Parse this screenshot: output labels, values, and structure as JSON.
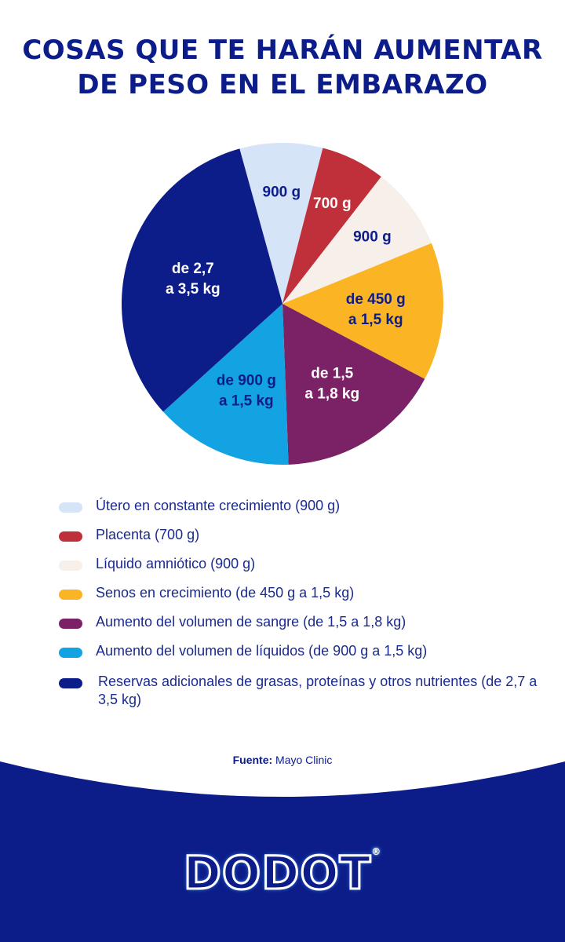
{
  "title": {
    "line1": "COSAS QUE TE HARÁN AUMENTAR",
    "line2": "DE PESO EN EL EMBARAZO"
  },
  "chart_data": {
    "type": "pie",
    "title": "COSAS QUE TE HARÁN AUMENTAR DE PESO EN EL EMBARAZO",
    "slices": [
      {
        "legend": "Útero en constante crecimiento (900 g)",
        "label_lines": [
          "900 g"
        ],
        "value": 900,
        "color": "#d6e4f7",
        "text_color": "#0c1d8a"
      },
      {
        "legend": "Placenta (700 g)",
        "label_lines": [
          "700 g"
        ],
        "value": 700,
        "color": "#c0303a",
        "text_color": "#ffffff"
      },
      {
        "legend": "Líquido amniótico (900 g)",
        "label_lines": [
          "900 g"
        ],
        "value": 900,
        "color": "#f6efea",
        "text_color": "#0c1d8a"
      },
      {
        "legend": "Senos en crecimiento (de 450 g a 1,5 kg)",
        "label_lines": [
          "de 450 g",
          "a 1,5 kg"
        ],
        "value": 1500,
        "color": "#fbb524",
        "text_color": "#0c1d8a"
      },
      {
        "legend": "Aumento del volumen de sangre (de 1,5 a 1,8 kg)",
        "label_lines": [
          "de 1,5",
          "a 1,8 kg"
        ],
        "value": 1800,
        "color": "#7b2266",
        "text_color": "#ffffff"
      },
      {
        "legend": "Aumento del volumen de líquidos (de 900 g a 1,5 kg)",
        "label_lines": [
          "de 900 g",
          "a 1,5 kg"
        ],
        "value": 1500,
        "color": "#13a2e2",
        "text_color": "#0c1d8a"
      },
      {
        "legend": "Reservas adicionales de grasas, proteínas y otros nutrientes (de 2,7 a 3,5 kg)",
        "label_lines": [
          "de 2,7",
          "a 3,5 kg"
        ],
        "value": 3500,
        "color": "#0c1d8a",
        "text_color": "#ffffff"
      }
    ],
    "legend_placement": "bottom"
  },
  "legend": {
    "items": [
      {
        "text": "Útero en constante crecimiento (900 g)",
        "color": "#d6e4f7"
      },
      {
        "text": "Placenta (700 g)",
        "color": "#c0303a"
      },
      {
        "text": "Líquido amniótico (900 g)",
        "color": "#f6efea"
      },
      {
        "text": "Senos en crecimiento (de 450 g a 1,5 kg)",
        "color": "#fbb524"
      },
      {
        "text": "Aumento del volumen de sangre (de 1,5 a 1,8 kg)",
        "color": "#7b2266"
      },
      {
        "text": "Aumento del volumen de líquidos (de 900 g a 1,5 kg)",
        "color": "#13a2e2"
      },
      {
        "text": "Reservas adicionales de grasas, proteínas y otros nutrientes (de 2,7 a 3,5 kg)",
        "color": "#0c1d8a"
      }
    ]
  },
  "source": {
    "label": "Fuente:",
    "value": "Mayo Clinic"
  },
  "brand": {
    "logo_text": "DODOT",
    "registered": "®",
    "color": "#0c1d8a"
  }
}
